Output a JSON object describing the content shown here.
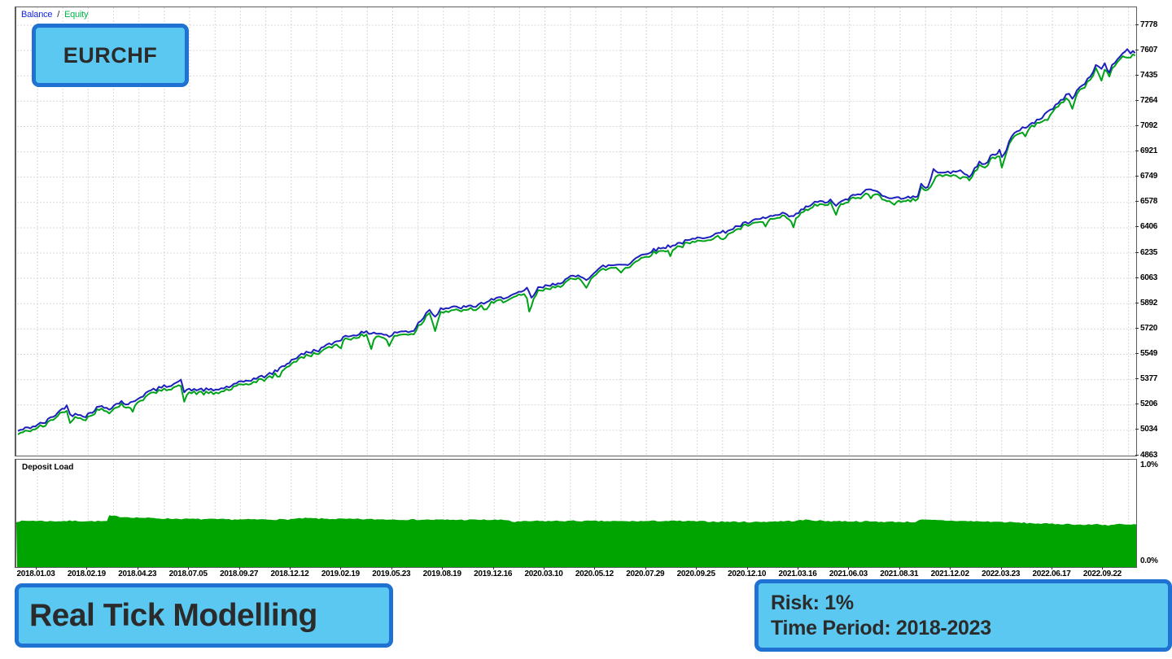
{
  "legend": {
    "balance": "Balance",
    "separator": "/",
    "equity": "Equity"
  },
  "symbol_box": {
    "text": "EURCHF"
  },
  "deposit_panel": {
    "title": "Deposit Load",
    "y_max": "1.0%",
    "y_min": "0.0%"
  },
  "annotations": {
    "modelling_box": "Real Tick Modelling",
    "risk_line": "Risk: 1%",
    "period_line": "Time Period: 2018-2023"
  },
  "colors": {
    "balance_line": "#1d20bb",
    "equity_line": "#00a219",
    "deposit_fill": "#00a400",
    "legend_balance": "#1326e0",
    "legend_equity": "#00b44c",
    "grid": "#d8d8d8",
    "frame": "#5e5e5e",
    "axis_text": "#000000",
    "box_fill": "#5bc8f2",
    "box_border": "#1f72d1",
    "box_text": "#2b2b2b"
  },
  "chart_data": [
    {
      "type": "line",
      "title": "Balance / Equity",
      "grid": "dashed",
      "legend_position": "top-left",
      "y_ticks": [
        7778,
        7607,
        7435,
        7264,
        7092,
        6921,
        6749,
        6578,
        6406,
        6235,
        6063,
        5892,
        5720,
        5549,
        5377,
        5206,
        5034,
        4863
      ],
      "ylim": [
        4863,
        7896
      ],
      "x_tick_labels": [
        "2018.01.03",
        "2018.02.19",
        "2018.04.23",
        "2018.07.05",
        "2018.09.27",
        "2018.12.12",
        "2019.02.19",
        "2019.05.23",
        "2019.08.19",
        "2019.12.16",
        "2020.03.10",
        "2020.05.12",
        "2020.07.29",
        "2020.09.25",
        "2020.12.10",
        "2021.03.16",
        "2021.06.03",
        "2021.08.31",
        "2021.12.02",
        "2022.03.23",
        "2022.06.17",
        "2022.09.22"
      ],
      "noise_amplitude": 12,
      "series": [
        {
          "name": "Balance",
          "points": [
            [
              0.15,
              5030
            ],
            [
              0.8,
              5045
            ],
            [
              1.7,
              5065
            ],
            [
              2.6,
              5090
            ],
            [
              3.3,
              5130
            ],
            [
              3.9,
              5165
            ],
            [
              4.5,
              5205
            ],
            [
              4.8,
              5135
            ],
            [
              5.5,
              5150
            ],
            [
              6.2,
              5130
            ],
            [
              7.0,
              5175
            ],
            [
              7.4,
              5195
            ],
            [
              8.3,
              5185
            ],
            [
              9.4,
              5230
            ],
            [
              10.0,
              5205
            ],
            [
              10.6,
              5240
            ],
            [
              11.8,
              5295
            ],
            [
              13.2,
              5330
            ],
            [
              14.7,
              5368
            ],
            [
              15.0,
              5302
            ],
            [
              16.1,
              5312
            ],
            [
              17.6,
              5305
            ],
            [
              19.0,
              5330
            ],
            [
              20.5,
              5370
            ],
            [
              21.9,
              5395
            ],
            [
              23.1,
              5430
            ],
            [
              24.8,
              5520
            ],
            [
              25.9,
              5560
            ],
            [
              27.0,
              5580
            ],
            [
              28.4,
              5630
            ],
            [
              29.4,
              5670
            ],
            [
              30.6,
              5690
            ],
            [
              31.7,
              5697
            ],
            [
              32.6,
              5690
            ],
            [
              33.3,
              5670
            ],
            [
              34.0,
              5700
            ],
            [
              35.0,
              5705
            ],
            [
              35.5,
              5712
            ],
            [
              35.9,
              5760
            ],
            [
              36.6,
              5825
            ],
            [
              36.9,
              5855
            ],
            [
              37.4,
              5808
            ],
            [
              37.9,
              5860
            ],
            [
              39.3,
              5865
            ],
            [
              40.8,
              5872
            ],
            [
              42.0,
              5905
            ],
            [
              43.7,
              5940
            ],
            [
              45.1,
              5965
            ],
            [
              45.6,
              5992
            ],
            [
              46.0,
              5930
            ],
            [
              46.6,
              5995
            ],
            [
              47.9,
              6020
            ],
            [
              48.8,
              6045
            ],
            [
              49.5,
              6070
            ],
            [
              50.4,
              6082
            ],
            [
              50.9,
              6060
            ],
            [
              52.4,
              6145
            ],
            [
              53.8,
              6158
            ],
            [
              54.8,
              6162
            ],
            [
              55.1,
              6192
            ],
            [
              56.5,
              6245
            ],
            [
              58.4,
              6285
            ],
            [
              60.6,
              6330
            ],
            [
              63.1,
              6375
            ],
            [
              64.9,
              6430
            ],
            [
              66.9,
              6475
            ],
            [
              68.4,
              6497
            ],
            [
              69.4,
              6480
            ],
            [
              70.3,
              6535
            ],
            [
              71.3,
              6575
            ],
            [
              72.7,
              6587
            ],
            [
              73.2,
              6560
            ],
            [
              74.7,
              6620
            ],
            [
              76.1,
              6662
            ],
            [
              76.3,
              6668
            ],
            [
              77.1,
              6640
            ],
            [
              78.4,
              6602
            ],
            [
              79.2,
              6615
            ],
            [
              80.5,
              6610
            ],
            [
              80.8,
              6695
            ],
            [
              81.4,
              6680
            ],
            [
              81.9,
              6805
            ],
            [
              82.5,
              6775
            ],
            [
              83.2,
              6785
            ],
            [
              84.1,
              6780
            ],
            [
              84.3,
              6805
            ],
            [
              85.1,
              6755
            ],
            [
              85.8,
              6820
            ],
            [
              86.0,
              6847
            ],
            [
              86.5,
              6835
            ],
            [
              87.0,
              6890
            ],
            [
              87.4,
              6902
            ],
            [
              87.8,
              6928
            ],
            [
              88.0,
              6885
            ],
            [
              88.4,
              6940
            ],
            [
              88.9,
              7028
            ],
            [
              89.6,
              7065
            ],
            [
              90.1,
              7090
            ],
            [
              90.9,
              7120
            ],
            [
              91.6,
              7158
            ],
            [
              92.1,
              7192
            ],
            [
              92.8,
              7230
            ],
            [
              93.5,
              7285
            ],
            [
              94.0,
              7312
            ],
            [
              94.3,
              7285
            ],
            [
              94.7,
              7340
            ],
            [
              95.2,
              7365
            ],
            [
              95.4,
              7385
            ],
            [
              95.9,
              7430
            ],
            [
              96.4,
              7505
            ],
            [
              96.9,
              7490
            ],
            [
              97.2,
              7512
            ],
            [
              97.6,
              7465
            ],
            [
              98.1,
              7530
            ],
            [
              98.8,
              7585
            ],
            [
              99.2,
              7612
            ],
            [
              99.5,
              7595
            ],
            [
              99.9,
              7590
            ]
          ]
        },
        {
          "name": "Equity",
          "derived_from": "Balance",
          "offset": -16,
          "drawdown_spikes": [
            [
              4.8,
              35
            ],
            [
              10.3,
              45
            ],
            [
              15.0,
              40
            ],
            [
              23.5,
              35
            ],
            [
              29.0,
              30
            ],
            [
              31.8,
              85
            ],
            [
              33.3,
              40
            ],
            [
              37.3,
              75
            ],
            [
              42.0,
              30
            ],
            [
              45.9,
              110
            ],
            [
              50.9,
              35
            ],
            [
              54.0,
              30
            ],
            [
              58.4,
              35
            ],
            [
              63.1,
              38
            ],
            [
              66.9,
              30
            ],
            [
              69.4,
              50
            ],
            [
              73.2,
              40
            ],
            [
              76.3,
              38
            ],
            [
              78.4,
              32
            ],
            [
              81.9,
              60
            ],
            [
              84.2,
              40
            ],
            [
              88.0,
              55
            ],
            [
              90.1,
              38
            ],
            [
              92.1,
              38
            ],
            [
              94.3,
              48
            ],
            [
              96.9,
              60
            ],
            [
              99.3,
              40
            ]
          ]
        }
      ]
    },
    {
      "type": "area",
      "title": "Deposit Load",
      "ylim": [
        0,
        1.0
      ],
      "y_tick_labels": [
        "1.0%",
        "0.0%"
      ],
      "noise_amplitude": 0.006,
      "points": [
        [
          0,
          0.425
        ],
        [
          1.5,
          0.432
        ],
        [
          3,
          0.427
        ],
        [
          5,
          0.43
        ],
        [
          7,
          0.427
        ],
        [
          8.1,
          0.427
        ],
        [
          8.3,
          0.478
        ],
        [
          9,
          0.472
        ],
        [
          10,
          0.465
        ],
        [
          11,
          0.46
        ],
        [
          13,
          0.452
        ],
        [
          16,
          0.447
        ],
        [
          20,
          0.443
        ],
        [
          24,
          0.443
        ],
        [
          25.8,
          0.455
        ],
        [
          27.5,
          0.45
        ],
        [
          30,
          0.447
        ],
        [
          34,
          0.443
        ],
        [
          38,
          0.44
        ],
        [
          42,
          0.44
        ],
        [
          44,
          0.437
        ],
        [
          44.3,
          0.42
        ],
        [
          46,
          0.428
        ],
        [
          50,
          0.43
        ],
        [
          54,
          0.426
        ],
        [
          58,
          0.43
        ],
        [
          62,
          0.424
        ],
        [
          66,
          0.42
        ],
        [
          69.5,
          0.43
        ],
        [
          70.5,
          0.44
        ],
        [
          72,
          0.43
        ],
        [
          75,
          0.426
        ],
        [
          78,
          0.421
        ],
        [
          80.3,
          0.42
        ],
        [
          80.6,
          0.44
        ],
        [
          82,
          0.436
        ],
        [
          84,
          0.43
        ],
        [
          86,
          0.425
        ],
        [
          88,
          0.42
        ],
        [
          90,
          0.411
        ],
        [
          92,
          0.403
        ],
        [
          94,
          0.4
        ],
        [
          95.5,
          0.392
        ],
        [
          96.5,
          0.4
        ],
        [
          97.5,
          0.39
        ],
        [
          98.5,
          0.4
        ],
        [
          99.3,
          0.392
        ],
        [
          100,
          0.398
        ]
      ]
    }
  ]
}
